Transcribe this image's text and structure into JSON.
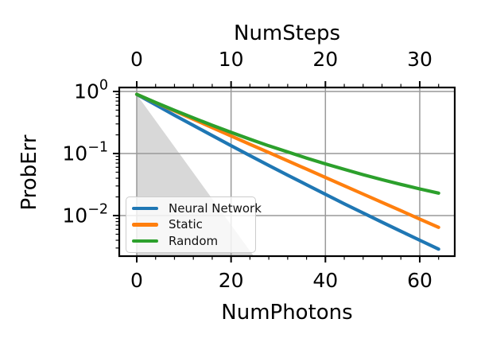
{
  "figure": {
    "background": "#ffffff"
  },
  "chart_data": {
    "type": "line",
    "title": "",
    "xlabel_bottom": "NumPhotons",
    "xlabel_top": "NumSteps",
    "ylabel": "ProbErr",
    "y_scale": "log",
    "x_scale": "linear",
    "grid": true,
    "xlim_photons": [
      -3.7,
      67.4
    ],
    "ylim": [
      0.00222,
      1.16
    ],
    "steps_per_photon": 0.5,
    "x": [
      0,
      4,
      8,
      12,
      16,
      20,
      24,
      28,
      32,
      36,
      40,
      44,
      48,
      52,
      56,
      60,
      64
    ],
    "series": [
      {
        "name": "Neural Network",
        "color": "#1f77b4",
        "values": [
          0.9,
          0.61,
          0.414,
          0.284,
          0.195,
          0.134,
          0.0926,
          0.0643,
          0.0448,
          0.0314,
          0.022,
          0.0155,
          0.011,
          0.00783,
          0.00559,
          0.004,
          0.00288
        ]
      },
      {
        "name": "Static",
        "color": "#ff7f0e",
        "values": [
          0.9,
          0.661,
          0.485,
          0.357,
          0.262,
          0.192,
          0.141,
          0.104,
          0.0762,
          0.056,
          0.0411,
          0.0302,
          0.0222,
          0.0163,
          0.012,
          0.00879,
          0.00646
        ]
      },
      {
        "name": "Random",
        "color": "#2ca02c",
        "values": [
          0.9,
          0.665,
          0.497,
          0.375,
          0.285,
          0.219,
          0.17,
          0.133,
          0.106,
          0.0844,
          0.0681,
          0.0555,
          0.0456,
          0.0379,
          0.0318,
          0.0269,
          0.023
        ]
      }
    ],
    "shaded_region": {
      "color": "#d8d8d8",
      "points_x": [
        0,
        24.8,
        0
      ],
      "points_y": [
        0.89,
        0.00222,
        0.00222
      ]
    },
    "x_ticks_bottom": {
      "values": [
        0,
        20,
        40,
        60
      ],
      "labels": [
        "0",
        "20",
        "40",
        "60"
      ],
      "minor_step": 4,
      "minor_max": 64
    },
    "x_ticks_top": {
      "values": [
        0,
        10,
        20,
        30
      ],
      "labels": [
        "0",
        "10",
        "20",
        "30"
      ],
      "minor_step": 2,
      "minor_max": 32
    },
    "y_ticks": [
      {
        "value": 1,
        "mantissa": "10",
        "exp": "0"
      },
      {
        "value": 0.1,
        "mantissa": "10",
        "exp": "−1"
      },
      {
        "value": 0.01,
        "mantissa": "10",
        "exp": "−2"
      }
    ],
    "legend": {
      "position": "lower left",
      "entries": [
        "Neural Network",
        "Static",
        "Random"
      ]
    }
  },
  "style_colors": {
    "grid": "#999999",
    "spine": "#000000",
    "tick_label": "#000000",
    "legend_border": "#cccccc"
  }
}
